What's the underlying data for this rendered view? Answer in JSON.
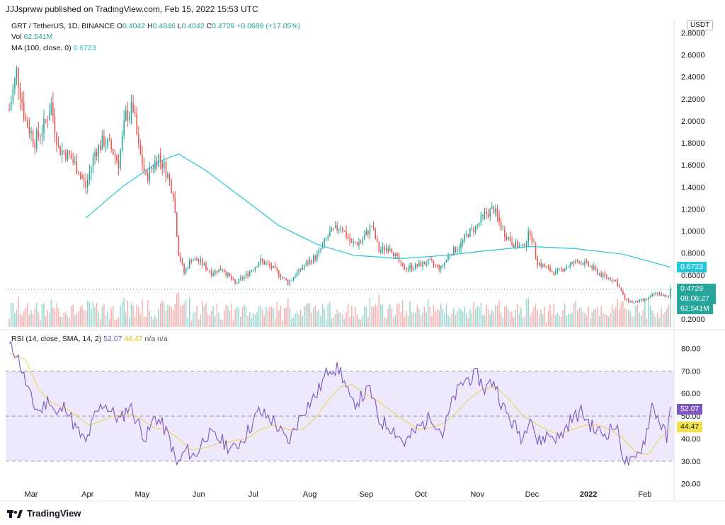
{
  "header": {
    "text": "JJJsprww published on TradingView.com, Feb 15, 2022 15:53 UTC"
  },
  "legend": {
    "symbol": "GRT / TetherUS, 1D, BINANCE",
    "o_label": "O",
    "o": "0.4042",
    "h_label": "H",
    "h": "0.4846",
    "l_label": "L",
    "l": "0.4042",
    "c_label": "C",
    "c": "0.4729",
    "change": "+0.0689 (+17.05%)",
    "vol_label": "Vol",
    "vol": "62.541M",
    "ma_label": "MA (100, close, 0)",
    "ma": "0.6723",
    "rsi_label": "RSI (14, close, SMA, 14, 2)",
    "rsi": "52.07",
    "rsi_ma": "44.47",
    "na1": "n/a",
    "na2": "n/a"
  },
  "currency": "USDT",
  "badges": {
    "ma": "0.6723",
    "price": "0.4729",
    "countdown": "08:06:27",
    "volume": "62.541M",
    "rsi": "52.07",
    "rsi_ma": "44.47"
  },
  "footer": {
    "brand": "TradingView"
  },
  "colors": {
    "up": "#26a69a",
    "down": "#ef5350",
    "ma": "#26c6da",
    "rsi": "#7e57c2",
    "rsi_ma": "#f0d35a",
    "band": "#ede8fb"
  },
  "chart_data": [
    {
      "type": "candlestick",
      "title": "GRT / TetherUS, 1D, BINANCE",
      "y_ticks": [
        "2.8000",
        "2.6000",
        "2.4000",
        "2.2000",
        "2.0000",
        "1.8000",
        "1.6000",
        "1.4000",
        "1.2000",
        "1.0000",
        "0.8000",
        "0.6000",
        "0.2000"
      ],
      "x_ticks": [
        "Mar",
        "Apr",
        "May",
        "Jun",
        "Jul",
        "Aug",
        "Sep",
        "Oct",
        "Nov",
        "Dec",
        "2022",
        "Feb"
      ],
      "ylim": [
        0.13,
        2.88
      ],
      "close_path": [
        [
          "2021-02-17",
          2.1
        ],
        [
          "2021-02-21",
          2.45
        ],
        [
          "2021-02-26",
          2.0
        ],
        [
          "2021-03-03",
          1.82
        ],
        [
          "2021-03-08",
          1.95
        ],
        [
          "2021-03-12",
          2.15
        ],
        [
          "2021-03-16",
          1.75
        ],
        [
          "2021-03-22",
          1.68
        ],
        [
          "2021-03-27",
          1.55
        ],
        [
          "2021-03-31",
          1.4
        ],
        [
          "2021-04-05",
          1.72
        ],
        [
          "2021-04-10",
          1.82
        ],
        [
          "2021-04-14",
          1.75
        ],
        [
          "2021-04-18",
          1.62
        ],
        [
          "2021-04-22",
          2.05
        ],
        [
          "2021-04-26",
          2.12
        ],
        [
          "2021-04-29",
          1.75
        ],
        [
          "2021-05-03",
          1.48
        ],
        [
          "2021-05-07",
          1.6
        ],
        [
          "2021-05-10",
          1.68
        ],
        [
          "2021-05-14",
          1.55
        ],
        [
          "2021-05-18",
          1.35
        ],
        [
          "2021-05-21",
          0.8
        ],
        [
          "2021-05-24",
          0.62
        ],
        [
          "2021-05-28",
          0.75
        ],
        [
          "2021-06-02",
          0.72
        ],
        [
          "2021-06-08",
          0.62
        ],
        [
          "2021-06-14",
          0.66
        ],
        [
          "2021-06-21",
          0.52
        ],
        [
          "2021-06-27",
          0.6
        ],
        [
          "2021-07-05",
          0.73
        ],
        [
          "2021-07-12",
          0.66
        ],
        [
          "2021-07-20",
          0.53
        ],
        [
          "2021-07-28",
          0.67
        ],
        [
          "2021-08-05",
          0.78
        ],
        [
          "2021-08-12",
          0.98
        ],
        [
          "2021-08-18",
          1.05
        ],
        [
          "2021-08-24",
          0.88
        ],
        [
          "2021-08-29",
          0.9
        ],
        [
          "2021-09-04",
          1.05
        ],
        [
          "2021-09-08",
          0.82
        ],
        [
          "2021-09-14",
          0.86
        ],
        [
          "2021-09-21",
          0.66
        ],
        [
          "2021-09-28",
          0.68
        ],
        [
          "2021-10-05",
          0.72
        ],
        [
          "2021-10-12",
          0.66
        ],
        [
          "2021-10-17",
          0.8
        ],
        [
          "2021-10-22",
          0.86
        ],
        [
          "2021-10-27",
          0.98
        ],
        [
          "2021-11-01",
          1.05
        ],
        [
          "2021-11-05",
          1.15
        ],
        [
          "2021-11-10",
          1.2
        ],
        [
          "2021-11-15",
          1.0
        ],
        [
          "2021-11-21",
          0.88
        ],
        [
          "2021-11-26",
          0.85
        ],
        [
          "2021-11-30",
          1.0
        ],
        [
          "2021-12-04",
          0.72
        ],
        [
          "2021-12-09",
          0.66
        ],
        [
          "2021-12-14",
          0.62
        ],
        [
          "2021-12-20",
          0.68
        ],
        [
          "2021-12-27",
          0.73
        ],
        [
          "2022-01-02",
          0.68
        ],
        [
          "2022-01-08",
          0.6
        ],
        [
          "2022-01-16",
          0.55
        ],
        [
          "2022-01-21",
          0.38
        ],
        [
          "2022-01-26",
          0.35
        ],
        [
          "2022-02-02",
          0.38
        ],
        [
          "2022-02-08",
          0.44
        ],
        [
          "2022-02-12",
          0.4
        ],
        [
          "2022-02-14",
          0.4042
        ],
        [
          "2022-02-15",
          0.4729
        ]
      ],
      "ma100_path": [
        [
          "2021-03-31",
          1.12
        ],
        [
          "2021-04-20",
          1.4
        ],
        [
          "2021-05-10",
          1.63
        ],
        [
          "2021-05-21",
          1.7
        ],
        [
          "2021-06-05",
          1.55
        ],
        [
          "2021-06-25",
          1.3
        ],
        [
          "2021-07-15",
          1.05
        ],
        [
          "2021-08-05",
          0.88
        ],
        [
          "2021-08-25",
          0.78
        ],
        [
          "2021-09-20",
          0.75
        ],
        [
          "2021-10-15",
          0.78
        ],
        [
          "2021-11-05",
          0.82
        ],
        [
          "2021-11-30",
          0.86
        ],
        [
          "2021-12-25",
          0.84
        ],
        [
          "2022-01-20",
          0.79
        ],
        [
          "2022-02-15",
          0.6723
        ]
      ]
    },
    {
      "type": "line",
      "title": "RSI (14, close, SMA, 14, 2)",
      "y_ticks": [
        "80.00",
        "70.00",
        "60.00",
        "50.00",
        "40.00",
        "30.00",
        "20.00"
      ],
      "ylim": [
        18,
        83
      ],
      "band": [
        30,
        70
      ],
      "midline": 50,
      "series": [
        {
          "name": "RSI",
          "values": [
            [
              "2021-02-17",
              81
            ],
            [
              "2021-02-21",
              78
            ],
            [
              "2021-02-26",
              65
            ],
            [
              "2021-03-02",
              55
            ],
            [
              "2021-03-06",
              52
            ],
            [
              "2021-03-11",
              58
            ],
            [
              "2021-03-15",
              50
            ],
            [
              "2021-03-20",
              55
            ],
            [
              "2021-03-25",
              45
            ],
            [
              "2021-03-31",
              38
            ],
            [
              "2021-04-05",
              50
            ],
            [
              "2021-04-10",
              56
            ],
            [
              "2021-04-14",
              52
            ],
            [
              "2021-04-19",
              48
            ],
            [
              "2021-04-24",
              55
            ],
            [
              "2021-04-28",
              48
            ],
            [
              "2021-05-03",
              40
            ],
            [
              "2021-05-08",
              50
            ],
            [
              "2021-05-12",
              46
            ],
            [
              "2021-05-16",
              40
            ],
            [
              "2021-05-20",
              28
            ],
            [
              "2021-05-25",
              35
            ],
            [
              "2021-05-30",
              32
            ],
            [
              "2021-06-05",
              42
            ],
            [
              "2021-06-12",
              40
            ],
            [
              "2021-06-20",
              35
            ],
            [
              "2021-06-27",
              42
            ],
            [
              "2021-07-04",
              52
            ],
            [
              "2021-07-12",
              48
            ],
            [
              "2021-07-20",
              38
            ],
            [
              "2021-07-28",
              52
            ],
            [
              "2021-08-05",
              60
            ],
            [
              "2021-08-12",
              72
            ],
            [
              "2021-08-18",
              70
            ],
            [
              "2021-08-24",
              55
            ],
            [
              "2021-08-29",
              58
            ],
            [
              "2021-09-03",
              62
            ],
            [
              "2021-09-08",
              48
            ],
            [
              "2021-09-15",
              45
            ],
            [
              "2021-09-22",
              38
            ],
            [
              "2021-09-30",
              45
            ],
            [
              "2021-10-07",
              50
            ],
            [
              "2021-10-13",
              42
            ],
            [
              "2021-10-19",
              58
            ],
            [
              "2021-10-25",
              66
            ],
            [
              "2021-11-01",
              68
            ],
            [
              "2021-11-05",
              62
            ],
            [
              "2021-11-10",
              66
            ],
            [
              "2021-11-15",
              54
            ],
            [
              "2021-11-21",
              46
            ],
            [
              "2021-11-26",
              40
            ],
            [
              "2021-11-30",
              52
            ],
            [
              "2021-12-04",
              38
            ],
            [
              "2021-12-10",
              42
            ],
            [
              "2021-12-16",
              40
            ],
            [
              "2021-12-22",
              48
            ],
            [
              "2021-12-28",
              52
            ],
            [
              "2022-01-04",
              44
            ],
            [
              "2022-01-10",
              42
            ],
            [
              "2022-01-16",
              46
            ],
            [
              "2022-01-21",
              30
            ],
            [
              "2022-01-26",
              29
            ],
            [
              "2022-02-01",
              40
            ],
            [
              "2022-02-05",
              55
            ],
            [
              "2022-02-09",
              48
            ],
            [
              "2022-02-13",
              40
            ],
            [
              "2022-02-15",
              52.07
            ]
          ]
        },
        {
          "name": "RSI-based MA",
          "values": [
            [
              "2021-02-17",
              78
            ],
            [
              "2021-02-26",
              75
            ],
            [
              "2021-03-05",
              62
            ],
            [
              "2021-03-12",
              56
            ],
            [
              "2021-03-19",
              54
            ],
            [
              "2021-03-26",
              50
            ],
            [
              "2021-04-02",
              46
            ],
            [
              "2021-04-09",
              48
            ],
            [
              "2021-04-16",
              50
            ],
            [
              "2021-04-23",
              51
            ],
            [
              "2021-04-30",
              49
            ],
            [
              "2021-05-07",
              45
            ],
            [
              "2021-05-14",
              44
            ],
            [
              "2021-05-21",
              40
            ],
            [
              "2021-05-28",
              35
            ],
            [
              "2021-06-05",
              36
            ],
            [
              "2021-06-12",
              38
            ],
            [
              "2021-06-20",
              39
            ],
            [
              "2021-06-27",
              40
            ],
            [
              "2021-07-05",
              44
            ],
            [
              "2021-07-12",
              46
            ],
            [
              "2021-07-20",
              44
            ],
            [
              "2021-07-28",
              44
            ],
            [
              "2021-08-05",
              50
            ],
            [
              "2021-08-12",
              58
            ],
            [
              "2021-08-18",
              63
            ],
            [
              "2021-08-24",
              64
            ],
            [
              "2021-08-31",
              60
            ],
            [
              "2021-09-07",
              57
            ],
            [
              "2021-09-15",
              52
            ],
            [
              "2021-09-22",
              48
            ],
            [
              "2021-09-30",
              44
            ],
            [
              "2021-10-07",
              45
            ],
            [
              "2021-10-14",
              47
            ],
            [
              "2021-10-21",
              52
            ],
            [
              "2021-10-28",
              58
            ],
            [
              "2021-11-04",
              62
            ],
            [
              "2021-11-11",
              63
            ],
            [
              "2021-11-18",
              58
            ],
            [
              "2021-11-25",
              51
            ],
            [
              "2021-12-02",
              47
            ],
            [
              "2021-12-09",
              44
            ],
            [
              "2021-12-16",
              42
            ],
            [
              "2021-12-23",
              44
            ],
            [
              "2021-12-30",
              46
            ],
            [
              "2022-01-06",
              46
            ],
            [
              "2022-01-13",
              44
            ],
            [
              "2022-01-20",
              40
            ],
            [
              "2022-01-27",
              34
            ],
            [
              "2022-02-03",
              33
            ],
            [
              "2022-02-09",
              40
            ],
            [
              "2022-02-15",
              44.47
            ]
          ]
        }
      ]
    }
  ]
}
